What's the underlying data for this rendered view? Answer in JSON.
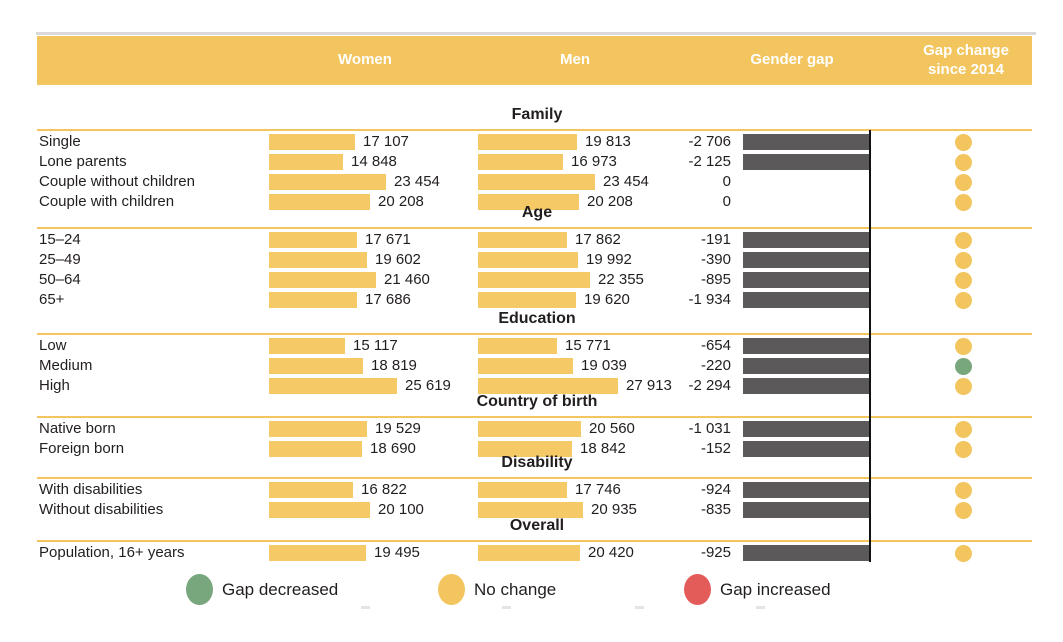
{
  "header": {
    "women": "Women",
    "men": "Men",
    "gender_gap": "Gender gap",
    "gap_change": "Gap change since 2014"
  },
  "legend": {
    "items": [
      {
        "label": "Gap decreased"
      },
      {
        "label": "No change"
      },
      {
        "label": "Gap increased"
      }
    ]
  },
  "colors": {
    "header_yellow": "#f2c55e",
    "bar_yellow": "#f5ca66",
    "divider_yellow": "#f2c55e",
    "gap_bar_gray": "#5c595a",
    "dot_yellow": "#f2c55e",
    "dot_green": "#78a77e",
    "dot_red": "#e45c5a",
    "axis_black": "#121212",
    "text": "#221e1f"
  },
  "status_colors": {
    "Gap decreased": "#78a77e",
    "No change": "#f2c55e",
    "Gap increased": "#e45c5a"
  },
  "chart_data": {
    "type": "bar",
    "orientation": "horizontal",
    "columns": [
      "Women",
      "Men",
      "Gender gap",
      "Gap change since 2014"
    ],
    "value_axis_range": [
      0,
      28000
    ],
    "grid": false,
    "legend_position": "bottom",
    "legend": [
      "Gap decreased",
      "No change",
      "Gap increased"
    ],
    "groups": [
      {
        "title": "Family",
        "rows": [
          {
            "category": "Single",
            "women": 17107,
            "men": 19813,
            "gender_gap": -2706,
            "gap_change_since_2014": "No change"
          },
          {
            "category": "Lone parents",
            "women": 14848,
            "men": 16973,
            "gender_gap": -2125,
            "gap_change_since_2014": "No change"
          },
          {
            "category": "Couple without children",
            "women": 23454,
            "men": 23454,
            "gender_gap": 0,
            "gap_change_since_2014": "No change"
          },
          {
            "category": "Couple with children",
            "women": 20208,
            "men": 20208,
            "gender_gap": 0,
            "gap_change_since_2014": "No change"
          }
        ]
      },
      {
        "title": "Age",
        "rows": [
          {
            "category": "15–24",
            "women": 17671,
            "men": 17862,
            "gender_gap": -191,
            "gap_change_since_2014": "No change"
          },
          {
            "category": "25–49",
            "women": 19602,
            "men": 19992,
            "gender_gap": -390,
            "gap_change_since_2014": "No change"
          },
          {
            "category": "50–64",
            "women": 21460,
            "men": 22355,
            "gender_gap": -895,
            "gap_change_since_2014": "No change"
          },
          {
            "category": "65+",
            "women": 17686,
            "men": 19620,
            "gender_gap": -1934,
            "gap_change_since_2014": "No change"
          }
        ]
      },
      {
        "title": "Education",
        "rows": [
          {
            "category": "Low",
            "women": 15117,
            "men": 15771,
            "gender_gap": -654,
            "gap_change_since_2014": "No change"
          },
          {
            "category": "Medium",
            "women": 18819,
            "men": 19039,
            "gender_gap": -220,
            "gap_change_since_2014": "Gap decreased"
          },
          {
            "category": "High",
            "women": 25619,
            "men": 27913,
            "gender_gap": -2294,
            "gap_change_since_2014": "No change"
          }
        ]
      },
      {
        "title": "Country of birth",
        "rows": [
          {
            "category": "Native born",
            "women": 19529,
            "men": 20560,
            "gender_gap": -1031,
            "gap_change_since_2014": "No change"
          },
          {
            "category": "Foreign born",
            "women": 18690,
            "men": 18842,
            "gender_gap": -152,
            "gap_change_since_2014": "No change"
          }
        ]
      },
      {
        "title": "Disability",
        "rows": [
          {
            "category": "With disabilities",
            "women": 16822,
            "men": 17746,
            "gender_gap": -924,
            "gap_change_since_2014": "No change"
          },
          {
            "category": "Without disabilities",
            "women": 20100,
            "men": 20935,
            "gender_gap": -835,
            "gap_change_since_2014": "No change"
          }
        ]
      },
      {
        "title": "Overall",
        "rows": [
          {
            "category": "Population, 16+ years",
            "women": 19495,
            "men": 20420,
            "gender_gap": -925,
            "gap_change_since_2014": "No change"
          }
        ]
      }
    ]
  }
}
